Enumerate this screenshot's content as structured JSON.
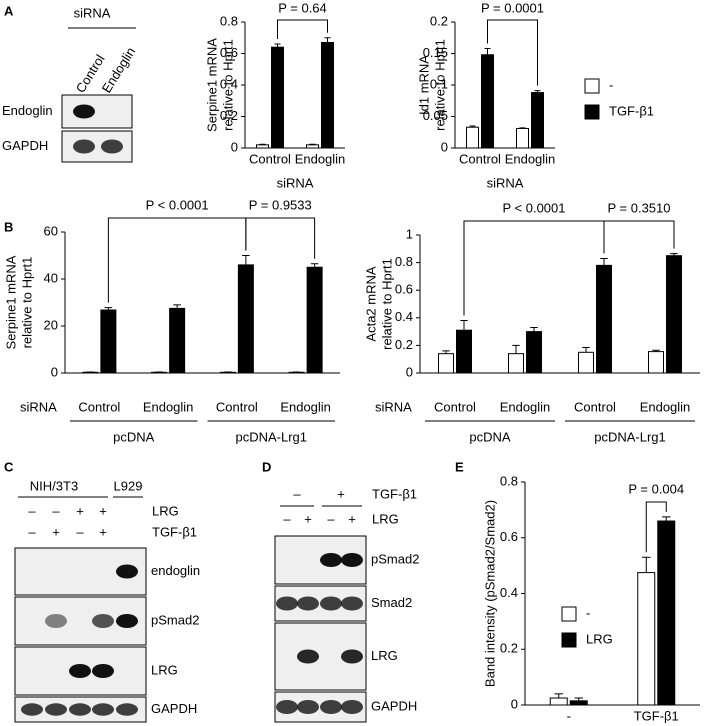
{
  "panel_labels": [
    "A",
    "B",
    "C",
    "D",
    "E"
  ],
  "blot_a": {
    "header": "siRNA",
    "lanes": [
      "Control",
      "Endoglin"
    ],
    "rows": [
      "Endoglin",
      "GAPDH"
    ]
  },
  "blot_c": {
    "groups": [
      "NIH/3T3",
      "L929"
    ],
    "conditions": [
      {
        "label": "LRG",
        "signs": [
          "–",
          "–",
          "+",
          "+"
        ]
      },
      {
        "label": "TGF-β1",
        "signs": [
          "–",
          "+",
          "–",
          "+"
        ]
      }
    ],
    "rows": [
      "endoglin",
      "pSmad2",
      "LRG",
      "GAPDH"
    ]
  },
  "blot_d": {
    "conditions": [
      {
        "label": "TGF-β1",
        "signs": [
          "–",
          "+"
        ]
      },
      {
        "label": "LRG",
        "signs": [
          "–",
          "+",
          "–",
          "+"
        ]
      }
    ],
    "rows": [
      "pSmad2",
      "Smad2",
      "LRG",
      "GAPDH"
    ]
  },
  "chart_data": [
    {
      "type": "bar",
      "ylabel": [
        "Serpine1 mRNA",
        "relative to Hprt1"
      ],
      "xlabel": "siRNA",
      "categories": [
        "Control",
        "Endoglin"
      ],
      "series": [
        {
          "color": "#ffffff",
          "values": [
            0.02,
            0.02
          ],
          "errors": [
            0.004,
            0.004
          ]
        },
        {
          "color": "#000000",
          "values": [
            0.64,
            0.67
          ],
          "errors": [
            0.02,
            0.03
          ]
        }
      ],
      "ylim": [
        0,
        0.8
      ],
      "yticks": [
        0,
        0.2,
        0.4,
        0.6,
        0.8
      ],
      "annotations": [
        "P = 0.64"
      ]
    },
    {
      "type": "bar",
      "ylabel": [
        "Id1 mRNA",
        "relative to Hprt1"
      ],
      "xlabel": "siRNA",
      "categories": [
        "Control",
        "Endoglin"
      ],
      "series": [
        {
          "name": "-",
          "color": "#ffffff",
          "values": [
            0.033,
            0.031
          ],
          "errors": [
            0.002,
            0.001
          ]
        },
        {
          "name": "TGF-β1",
          "color": "#000000",
          "values": [
            0.148,
            0.088
          ],
          "errors": [
            0.01,
            0.003
          ]
        }
      ],
      "ylim": [
        0,
        0.2
      ],
      "yticks": [
        0,
        0.05,
        0.1,
        0.15,
        0.2
      ],
      "annotations": [
        "P = 0.0001"
      ]
    },
    {
      "type": "bar",
      "ylabel": [
        "Serpine1 mRNA",
        "relative to Hprt1"
      ],
      "xlabel": "siRNA",
      "categories": [
        "Control",
        "Endoglin",
        "Control",
        "Endoglin"
      ],
      "groups": [
        "pcDNA",
        "pcDNA-Lrg1"
      ],
      "series": [
        {
          "color": "#ffffff",
          "values": [
            0.3,
            0.3,
            0.3,
            0.3
          ],
          "errors": [
            0.1,
            0.1,
            0.1,
            0.1
          ]
        },
        {
          "color": "#000000",
          "values": [
            26.8,
            27.5,
            46,
            45
          ],
          "errors": [
            1,
            1.5,
            4,
            1.5
          ]
        }
      ],
      "ylim": [
        0,
        60
      ],
      "yticks": [
        0,
        20,
        40,
        60
      ],
      "annotations": [
        "P < 0.0001",
        "P = 0.9533"
      ]
    },
    {
      "type": "bar",
      "ylabel": [
        "Acta2 mRNA",
        "relative to Hprt1"
      ],
      "xlabel": "siRNA",
      "categories": [
        "Control",
        "Endoglin",
        "Control",
        "Endoglin"
      ],
      "groups": [
        "pcDNA",
        "pcDNA-Lrg1"
      ],
      "series": [
        {
          "color": "#ffffff",
          "values": [
            0.14,
            0.14,
            0.15,
            0.155
          ],
          "errors": [
            0.02,
            0.06,
            0.035,
            0.01
          ]
        },
        {
          "color": "#000000",
          "values": [
            0.31,
            0.3,
            0.78,
            0.85
          ],
          "errors": [
            0.07,
            0.03,
            0.05,
            0.015
          ]
        }
      ],
      "ylim": [
        0,
        1
      ],
      "yticks": [
        0,
        0.2,
        0.4,
        0.6,
        0.8,
        1
      ],
      "annotations": [
        "P < 0.0001",
        "P = 0.3510"
      ]
    },
    {
      "type": "bar",
      "ylabel": [
        "Band intensity (pSmad2/Smad2)"
      ],
      "categories": [
        "-",
        "TGF-β1"
      ],
      "series": [
        {
          "name": "-",
          "color": "#ffffff",
          "values": [
            0.025,
            0.475
          ],
          "errors": [
            0.015,
            0.055
          ]
        },
        {
          "name": "LRG",
          "color": "#000000",
          "values": [
            0.015,
            0.66
          ],
          "errors": [
            0.01,
            0.015
          ]
        }
      ],
      "ylim": [
        0,
        0.8
      ],
      "yticks": [
        0,
        0.2,
        0.4,
        0.6,
        0.8
      ],
      "annotations": [
        "P = 0.004"
      ]
    }
  ]
}
